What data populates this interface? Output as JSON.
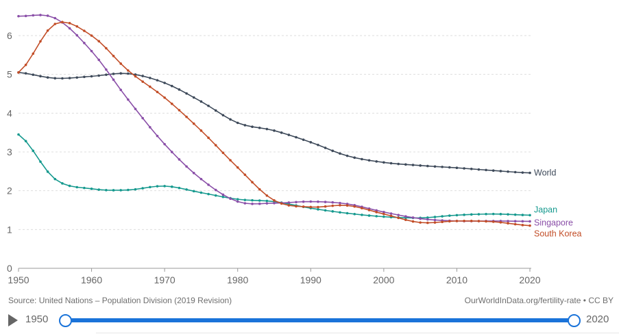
{
  "chart_data": {
    "type": "line",
    "title": "",
    "xlabel": "",
    "ylabel": "",
    "xlim": [
      1950,
      2020
    ],
    "ylim": [
      0,
      6.6
    ],
    "x_ticks": [
      "1950",
      "1960",
      "1970",
      "1980",
      "1990",
      "2000",
      "2010",
      "2020"
    ],
    "y_ticks": [
      "0",
      "1",
      "2",
      "3",
      "4",
      "5",
      "6"
    ],
    "grid": true,
    "legend": "inline-right",
    "x": [
      1950,
      1955,
      1960,
      1965,
      1970,
      1975,
      1980,
      1985,
      1990,
      1995,
      2000,
      2005,
      2010,
      2015,
      2020
    ],
    "series": [
      {
        "name": "World",
        "color": "#3e4a5a",
        "values": [
          5.05,
          4.9,
          4.95,
          5.02,
          4.78,
          4.3,
          3.75,
          3.55,
          3.25,
          2.9,
          2.73,
          2.65,
          2.59,
          2.52,
          2.46
        ]
      },
      {
        "name": "Japan",
        "color": "#15998e",
        "values": [
          3.45,
          2.3,
          2.05,
          2.02,
          2.12,
          1.95,
          1.78,
          1.72,
          1.55,
          1.42,
          1.33,
          1.3,
          1.37,
          1.4,
          1.37
        ]
      },
      {
        "name": "Singapore",
        "color": "#8a4fa8",
        "values": [
          6.5,
          6.45,
          5.6,
          4.35,
          3.2,
          2.3,
          1.72,
          1.68,
          1.72,
          1.66,
          1.45,
          1.28,
          1.22,
          1.22,
          1.21
        ]
      },
      {
        "name": "South Korea",
        "color": "#c24d27",
        "values": [
          5.05,
          6.3,
          6.0,
          5.1,
          4.4,
          3.55,
          2.6,
          1.75,
          1.58,
          1.62,
          1.4,
          1.18,
          1.22,
          1.2,
          1.1
        ]
      }
    ]
  },
  "footer": {
    "source": "Source: United Nations – Population Division (2019 Revision)",
    "url": "OurWorldInData.org/fertility-rate • CC BY"
  },
  "timeline": {
    "start_year": "1950",
    "end_year": "2020",
    "play_icon": "play-icon"
  }
}
